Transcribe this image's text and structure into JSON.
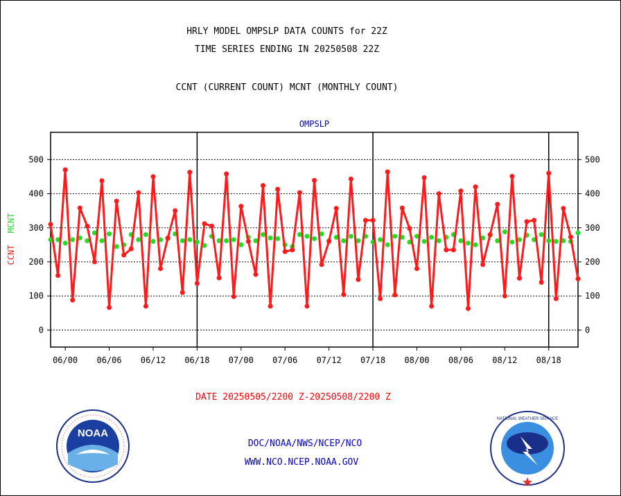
{
  "header": {
    "line1": "HRLY MODEL OMPSLP DATA COUNTS for 22Z",
    "line2": "TIME SERIES ENDING IN 20250508 22Z",
    "line3": "CCNT (CURRENT COUNT) MCNT (MONTHLY COUNT)"
  },
  "footer": {
    "date_range": "DATE 20250505/2200 Z-20250508/2200 Z",
    "org_path": "DOC/NOAA/NWS/NCEP/NCO",
    "website": "WWW.NCO.NCEP.NOAA.GOV"
  },
  "logos": {
    "noaa_text": "NOAA",
    "nws_text": "NATIONAL WEATHER SERVICE"
  },
  "colors": {
    "ccnt": "#ff1a1a",
    "mcnt": "#22dd22",
    "title": "#0000cc",
    "date": "#ff0000",
    "footer": "#0000cc"
  },
  "chart_data": {
    "type": "line",
    "title": "OMPSLP",
    "ylabel_ccnt": "CCNT",
    "ylabel_mcnt": "MCNT",
    "ylim": [
      -50,
      580
    ],
    "yticks": [
      0,
      100,
      200,
      300,
      400,
      500
    ],
    "x_tick_labels": [
      "06/00",
      "06/06",
      "06/12",
      "06/18",
      "07/00",
      "07/06",
      "07/12",
      "07/18",
      "08/00",
      "08/06",
      "08/12",
      "08/18"
    ],
    "x_tick_hours": [
      2,
      8,
      14,
      20,
      26,
      32,
      38,
      44,
      50,
      56,
      62,
      68
    ],
    "day_boundaries_hours": [
      20,
      44,
      68
    ],
    "x_start_hour": 0,
    "x_end_hour": 72,
    "series": [
      {
        "name": "CCNT",
        "values": [
          310,
          160,
          470,
          88,
          358,
          305,
          200,
          438,
          66,
          378,
          220,
          238,
          403,
          70,
          450,
          180,
          270,
          350,
          110,
          463,
          137,
          312,
          305,
          153,
          458,
          98,
          363,
          260,
          163,
          424,
          70,
          413,
          230,
          235,
          403,
          70,
          439,
          192,
          260,
          357,
          104,
          443,
          148,
          322,
          322,
          92,
          464,
          103,
          358,
          298,
          180,
          447,
          70,
          400,
          235,
          235,
          408,
          63,
          420,
          192,
          280,
          369,
          100,
          451,
          152,
          318,
          322,
          140,
          460,
          92,
          357,
          273,
          150
        ],
        "note": "every ~20 min sample, approximate"
      },
      {
        "name": "MCNT",
        "values": [
          265,
          265,
          255,
          265,
          270,
          262,
          285,
          262,
          282,
          245,
          250,
          280,
          265,
          280,
          260,
          265,
          268,
          282,
          262,
          265,
          258,
          248,
          275,
          262,
          262,
          265,
          250,
          272,
          262,
          280,
          270,
          268,
          250,
          245,
          280,
          275,
          268,
          282,
          262,
          272,
          262,
          275,
          262,
          275,
          258,
          265,
          250,
          275,
          272,
          258,
          275,
          260,
          272,
          262,
          272,
          280,
          262,
          255,
          250,
          270,
          278,
          262,
          288,
          258,
          265,
          278,
          265,
          280,
          262,
          260,
          262,
          260,
          285
        ],
        "note": "approximate"
      }
    ]
  }
}
